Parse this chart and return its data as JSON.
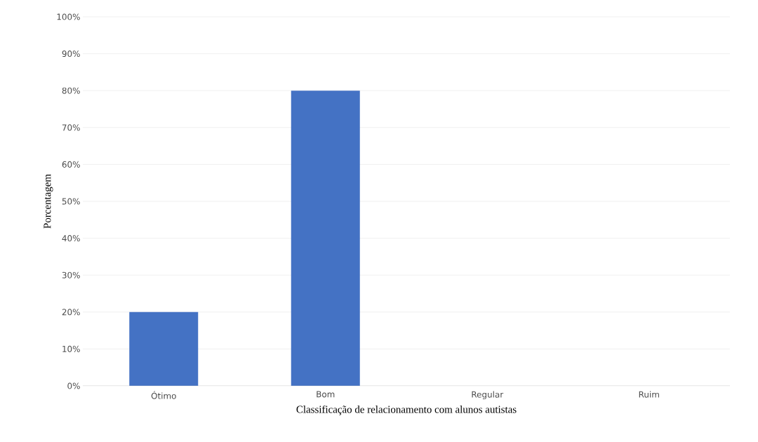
{
  "chart_data": {
    "type": "bar",
    "xlabel": "Classificação de relacionamento com alunos autistas",
    "ylabel": "Porcentagem",
    "categories": [
      "Ótimo",
      "Bom",
      "Regular",
      "Ruim"
    ],
    "values": [
      20,
      80,
      0,
      0
    ],
    "color": "#4472c4",
    "ylim": [
      0,
      100
    ],
    "yticks": [
      {
        "value": 0,
        "label": "0%"
      },
      {
        "value": 10,
        "label": "10%"
      },
      {
        "value": 20,
        "label": "20%"
      },
      {
        "value": 30,
        "label": "30%"
      },
      {
        "value": 40,
        "label": "40%"
      },
      {
        "value": 50,
        "label": "50%"
      },
      {
        "value": 60,
        "label": "60%"
      },
      {
        "value": 70,
        "label": "70%"
      },
      {
        "value": 80,
        "label": "80%"
      },
      {
        "value": 90,
        "label": "90%"
      },
      {
        "value": 100,
        "label": "100%"
      }
    ],
    "grid": "y"
  }
}
